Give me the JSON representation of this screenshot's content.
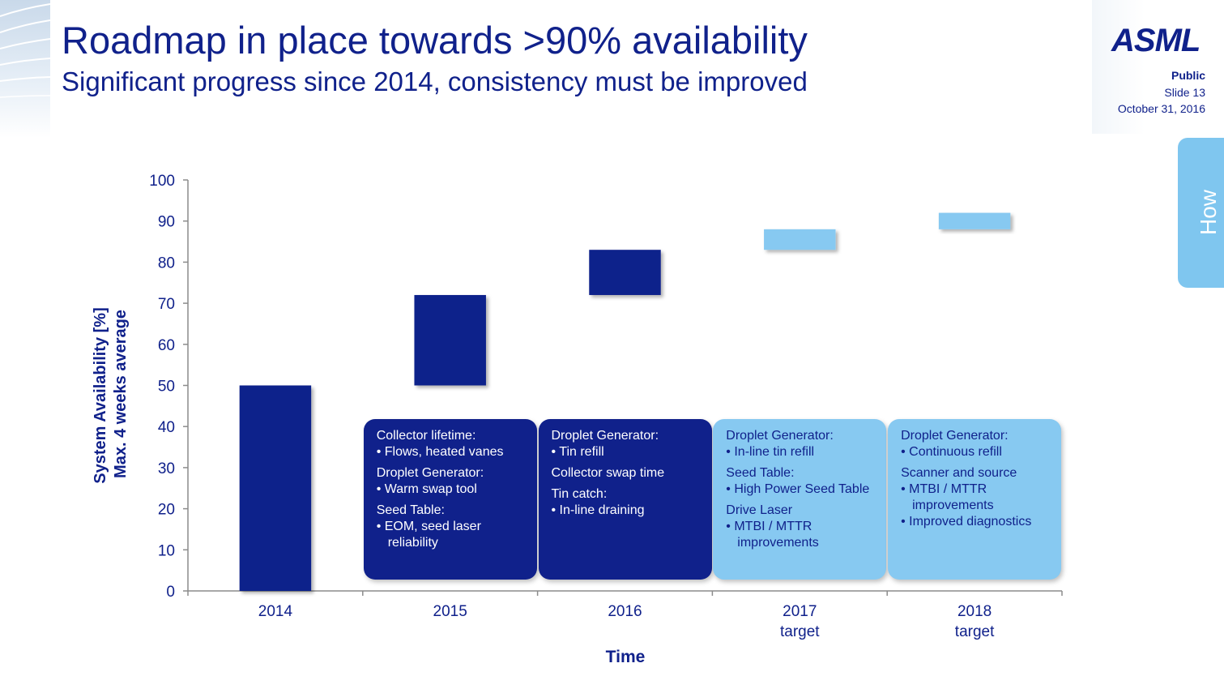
{
  "slide": {
    "title": "Roadmap in place towards >90% availability",
    "subtitle": "Significant progress since 2014, consistency must be improved",
    "logo": "ASML",
    "classification": "Public",
    "slide_number": "Slide 13",
    "date": "October 31, 2016",
    "section_tab": "How"
  },
  "colors": {
    "dark_bar": "#10218b",
    "light_bar": "#87c9f1",
    "text": "#10218b"
  },
  "chart_data": {
    "type": "bar",
    "categories": [
      [
        "2014"
      ],
      [
        "2015"
      ],
      [
        "2016"
      ],
      [
        "2017",
        "target"
      ],
      [
        "2018",
        "target"
      ]
    ],
    "ranges": [
      {
        "low": 0,
        "high": 50,
        "style": "actual"
      },
      {
        "low": 50,
        "high": 72,
        "style": "actual"
      },
      {
        "low": 72,
        "high": 83,
        "style": "actual"
      },
      {
        "low": 83,
        "high": 88,
        "style": "target"
      },
      {
        "low": 88,
        "high": 92,
        "style": "target"
      }
    ],
    "ylim": [
      0,
      100
    ],
    "yticks": [
      0,
      10,
      20,
      30,
      40,
      50,
      60,
      70,
      80,
      90,
      100
    ],
    "ylabel_line1": "System Availability [%]",
    "ylabel_line2": "Max. 4 weeks average",
    "xlabel": "Time",
    "annotations": [
      {
        "style": "dark",
        "groups": [
          {
            "heading": "Collector lifetime:",
            "bullets": [
              "Flows, heated vanes"
            ]
          },
          {
            "heading": "Droplet Generator:",
            "bullets": [
              "Warm swap tool"
            ]
          },
          {
            "heading": "Seed Table:",
            "bullets": [
              "EOM, seed laser reliability"
            ]
          }
        ]
      },
      {
        "style": "dark",
        "groups": [
          {
            "heading": "Droplet Generator:",
            "bullets": [
              "Tin refill"
            ]
          },
          {
            "heading": "Collector swap time",
            "bullets": []
          },
          {
            "heading": "Tin catch:",
            "bullets": [
              "In-line draining"
            ]
          }
        ]
      },
      {
        "style": "light",
        "groups": [
          {
            "heading": "Droplet Generator:",
            "bullets": [
              "In-line tin refill"
            ]
          },
          {
            "heading": "Seed Table:",
            "bullets": [
              "High Power Seed Table"
            ]
          },
          {
            "heading": "Drive Laser",
            "bullets": [
              "MTBI / MTTR improvements"
            ]
          }
        ]
      },
      {
        "style": "light",
        "groups": [
          {
            "heading": "Droplet Generator:",
            "bullets": [
              "Continuous refill"
            ]
          },
          {
            "heading": "Scanner and source",
            "bullets": [
              "MTBI / MTTR improvements",
              "Improved diagnostics"
            ]
          }
        ]
      }
    ]
  }
}
